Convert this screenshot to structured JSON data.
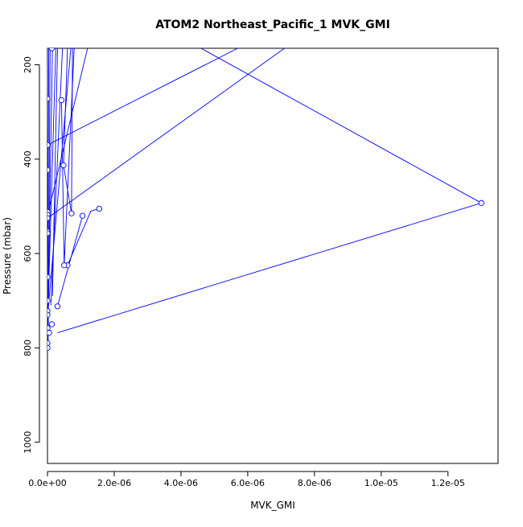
{
  "chart_data": {
    "type": "line",
    "title": "ATOM2 Northeast_Pacific_1 MVK_GMI",
    "xlabel": "MVK_GMI",
    "ylabel": "Pressure (mbar)",
    "xlim": [
      0,
      1.35e-05
    ],
    "ylim": [
      1045,
      165
    ],
    "y_inverted": true,
    "x_ticks": [
      {
        "value": 0,
        "label": "0.0e+00"
      },
      {
        "value": 2e-06,
        "label": "2.0e-06"
      },
      {
        "value": 4e-06,
        "label": "4.0e-06"
      },
      {
        "value": 6e-06,
        "label": "6.0e-06"
      },
      {
        "value": 8e-06,
        "label": "8.0e-06"
      },
      {
        "value": 1e-05,
        "label": "1.0e-05"
      },
      {
        "value": 1.2e-05,
        "label": "1.2e-05"
      }
    ],
    "y_ticks": [
      {
        "value": 200,
        "label": "200"
      },
      {
        "value": 400,
        "label": "400"
      },
      {
        "value": 600,
        "label": "600"
      },
      {
        "value": 800,
        "label": "800"
      },
      {
        "value": 1000,
        "label": "1000"
      }
    ],
    "grid": false,
    "line_color": "#0000ff",
    "series": [
      {
        "x": [
          0,
          0,
          0,
          0,
          0,
          0,
          0,
          0,
          0,
          0,
          0,
          0,
          0,
          0,
          0,
          0
        ],
        "y": [
          272,
          370,
          423,
          512,
          518,
          525,
          553,
          557,
          650,
          700,
          722,
          730,
          758,
          768,
          790,
          800
        ]
      },
      {
        "x": [
          4.2e-07,
          7.2e-07,
          1.05e-06,
          6e-07,
          1.55e-06,
          1.3e-07,
          4.8e-07,
          1.3e-05,
          3e-07,
          5e-08,
          1.3e-07,
          5e-07
        ],
        "y": [
          275,
          515,
          520,
          625,
          505,
          750,
          413,
          493,
          712,
          768,
          165,
          625
        ]
      }
    ],
    "segments": [
      {
        "x": [
          0,
          7.1e-06
        ],
        "y": [
          525,
          165
        ]
      },
      {
        "x": [
          0,
          5.7e-06
        ],
        "y": [
          370,
          165
        ]
      },
      {
        "x": [
          4.6e-06,
          1.3e-05
        ],
        "y": [
          165,
          493
        ]
      },
      {
        "x": [
          1.3e-05,
          3e-07
        ],
        "y": [
          493,
          768
        ]
      },
      {
        "x": [
          0,
          1.2e-06
        ],
        "y": [
          520,
          165
        ]
      },
      {
        "x": [
          0,
          7e-07
        ],
        "y": [
          735,
          165
        ]
      },
      {
        "x": [
          1e-07,
          4.5e-07
        ],
        "y": [
          710,
          165
        ]
      },
      {
        "x": [
          1.5e-07,
          3e-07
        ],
        "y": [
          690,
          165
        ]
      },
      {
        "x": [
          3e-07,
          1.05e-06
        ],
        "y": [
          712,
          520
        ]
      },
      {
        "x": [
          6e-07,
          1.3e-06
        ],
        "y": [
          625,
          510
        ]
      },
      {
        "x": [
          1.3e-06,
          1.55e-06
        ],
        "y": [
          510,
          505
        ]
      },
      {
        "x": [
          4.8e-07,
          6e-07
        ],
        "y": [
          413,
          165
        ]
      },
      {
        "x": [
          4.8e-07,
          7.2e-07
        ],
        "y": [
          413,
          515
        ]
      },
      {
        "x": [
          4.2e-07,
          5e-07
        ],
        "y": [
          275,
          625
        ]
      },
      {
        "x": [
          5e-07,
          8e-07
        ],
        "y": [
          625,
          165
        ]
      },
      {
        "x": [
          7.2e-07,
          7.5e-07
        ],
        "y": [
          515,
          165
        ]
      },
      {
        "x": [
          0,
          1.5e-07
        ],
        "y": [
          800,
          165
        ]
      },
      {
        "x": [
          0,
          2.5e-07
        ],
        "y": [
          758,
          165
        ]
      },
      {
        "x": [
          0,
          4e-08
        ],
        "y": [
          800,
          165
        ]
      },
      {
        "x": [
          2e-08,
          8e-08
        ],
        "y": [
          790,
          165
        ]
      },
      {
        "x": [
          0,
          0
        ],
        "y": [
          800,
          165
        ]
      }
    ]
  }
}
